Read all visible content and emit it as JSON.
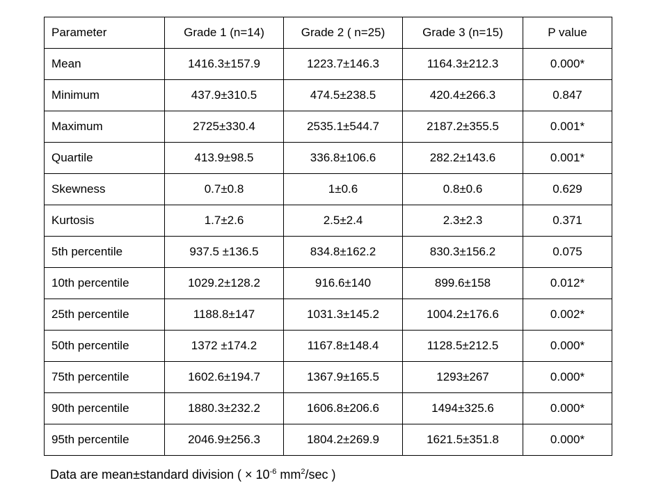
{
  "table": {
    "header": [
      "Parameter",
      "Grade 1 (n=14)",
      "Grade 2 ( n=25)",
      "Grade 3 (n=15)",
      "P value"
    ],
    "rows": [
      [
        "Mean",
        "1416.3±157.9",
        "1223.7±146.3",
        "1164.3±212.3",
        "0.000*"
      ],
      [
        "Minimum",
        "437.9±310.5",
        "474.5±238.5",
        "420.4±266.3",
        "0.847"
      ],
      [
        "Maximum",
        "2725±330.4",
        "2535.1±544.7",
        "2187.2±355.5",
        "0.001*"
      ],
      [
        "Quartile",
        "413.9±98.5",
        "336.8±106.6",
        "282.2±143.6",
        "0.001*"
      ],
      [
        "Skewness",
        "0.7±0.8",
        "1±0.6",
        "0.8±0.6",
        "0.629"
      ],
      [
        "Kurtosis",
        "1.7±2.6",
        "2.5±2.4",
        "2.3±2.3",
        "0.371"
      ],
      [
        "5th percentile",
        "937.5 ±136.5",
        "834.8±162.2",
        "830.3±156.2",
        "0.075"
      ],
      [
        "10th percentile",
        "1029.2±128.2",
        "916.6±140",
        "899.6±158",
        "0.012*"
      ],
      [
        "25th percentile",
        "1188.8±147",
        "1031.3±145.2",
        "1004.2±176.6",
        "0.002*"
      ],
      [
        "50th percentile",
        "1372 ±174.2",
        "1167.8±148.4",
        "1128.5±212.5",
        "0.000*"
      ],
      [
        "75th percentile",
        "1602.6±194.7",
        "1367.9±165.5",
        "1293±267",
        "0.000*"
      ],
      [
        "90th percentile",
        "1880.3±232.2",
        "1606.8±206.6",
        "1494±325.6",
        "0.000*"
      ],
      [
        "95th percentile",
        "2046.9±256.3",
        "1804.2±269.9",
        "1621.5±351.8",
        "0.000*"
      ]
    ]
  },
  "note": {
    "text": "Data are mean±standard division ( × 10",
    "exp1": "-6",
    "unit": " mm",
    "exp2": "2",
    "end": "/sec )"
  }
}
